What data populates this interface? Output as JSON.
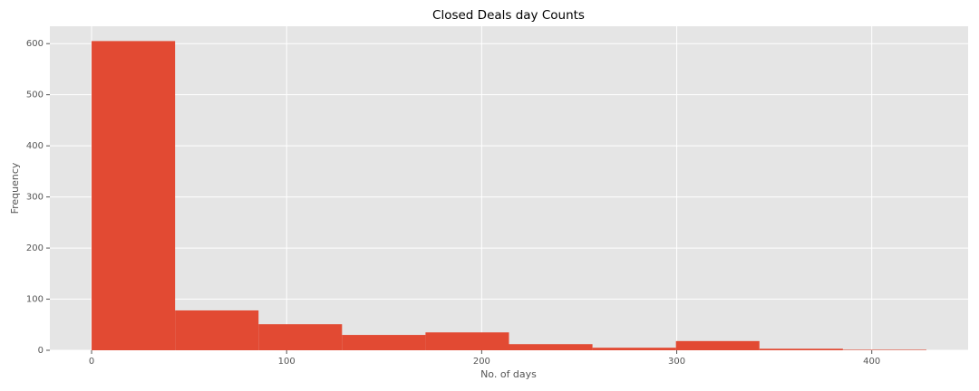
{
  "chart_data": {
    "type": "histogram",
    "title": "Closed Deals day Counts",
    "x_label": "No. of days",
    "y_label": "Frequency",
    "bins": [
      0,
      42.8,
      85.6,
      128.4,
      171.2,
      214,
      256.8,
      299.6,
      342.4,
      385.2,
      428
    ],
    "values": [
      605,
      78,
      51,
      30,
      35,
      12,
      5,
      18,
      3,
      1
    ],
    "color": "#e24a33",
    "xlim": [
      -21.4,
      449.4
    ],
    "xticks": [
      0,
      100,
      200,
      300,
      400
    ],
    "ylim": [
      0,
      634
    ],
    "yticks": [
      0,
      100,
      200,
      300,
      400,
      500,
      600
    ],
    "grid": true
  }
}
